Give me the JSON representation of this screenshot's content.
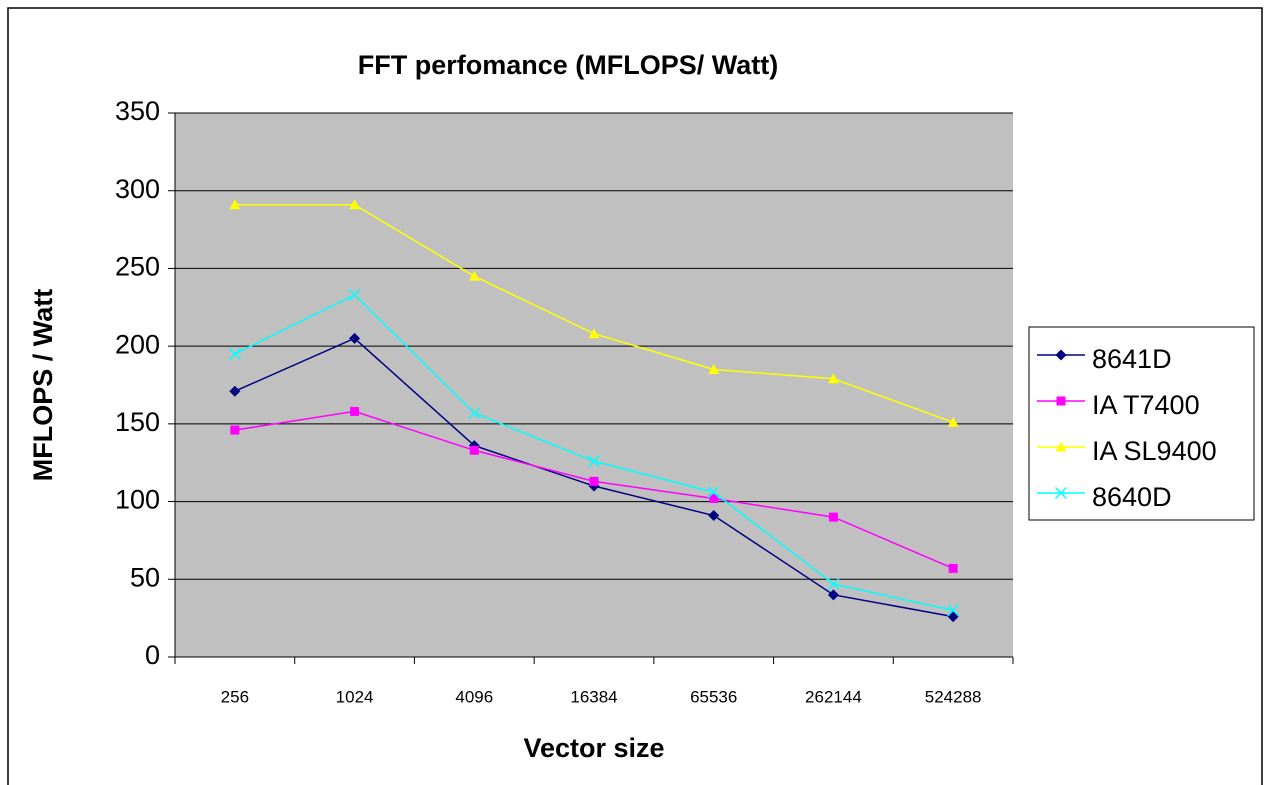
{
  "chart_data": {
    "type": "line",
    "title": "FFT perfomance (MFLOPS/ Watt)",
    "x_label": "Vector size",
    "y_label": "MFLOPS / Watt",
    "categories": [
      "256",
      "1024",
      "4096",
      "16384",
      "65536",
      "262144",
      "524288"
    ],
    "series": [
      {
        "name": "8641D",
        "color": "#000080",
        "marker": "diamond",
        "values": [
          171,
          205,
          136,
          110,
          91,
          40,
          26
        ]
      },
      {
        "name": "IA T7400",
        "color": "#ff00ff",
        "marker": "square",
        "values": [
          146,
          158,
          133,
          113,
          102,
          90,
          57
        ]
      },
      {
        "name": "IA SL9400",
        "color": "#ffff00",
        "marker": "triangle",
        "values": [
          291,
          291,
          245,
          208,
          185,
          179,
          151
        ]
      },
      {
        "name": "8640D",
        "color": "#00ffff",
        "marker": "x",
        "values": [
          195,
          233,
          157,
          126,
          106,
          47,
          30
        ]
      }
    ],
    "ylim": [
      0,
      350
    ],
    "yticks": [
      0,
      50,
      100,
      150,
      200,
      250,
      300,
      350
    ],
    "grid": true,
    "legend": "right"
  }
}
